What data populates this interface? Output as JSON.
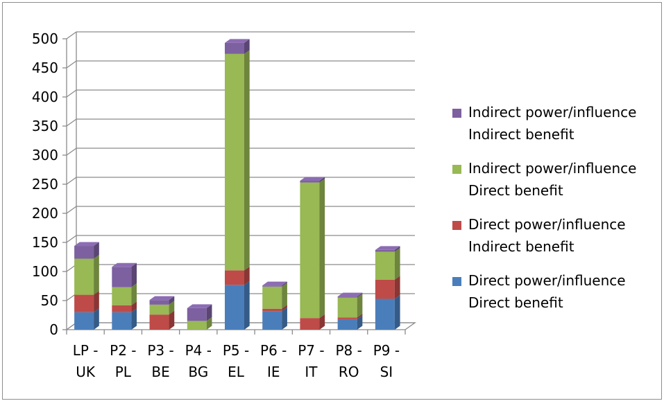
{
  "chart_data": {
    "type": "bar",
    "stacked": true,
    "three_d": true,
    "categories": [
      [
        "LP -",
        "UK"
      ],
      [
        "P2 -",
        "PL"
      ],
      [
        "P3 -",
        "BE"
      ],
      [
        "P4 -",
        "BG"
      ],
      [
        "P5 -",
        "EL"
      ],
      [
        "P6 -",
        "IE"
      ],
      [
        "P7 -",
        "IT"
      ],
      [
        "P8 -",
        "RO"
      ],
      [
        "P9 -",
        "SI"
      ]
    ],
    "series": [
      {
        "name": [
          "Direct power/influence",
          "Direct benefit"
        ],
        "color": "#4a7ebb",
        "values": [
          30,
          30,
          0,
          0,
          77,
          32,
          0,
          18,
          53
        ]
      },
      {
        "name": [
          "Direct power/influence",
          "Indirect benefit"
        ],
        "color": "#be4b48",
        "values": [
          30,
          12,
          26,
          0,
          25,
          4,
          20,
          3,
          33
        ]
      },
      {
        "name": [
          "Indirect power/influence",
          "Direct benefit"
        ],
        "color": "#98b954",
        "values": [
          62,
          31,
          17,
          15,
          372,
          38,
          233,
          34,
          48
        ]
      },
      {
        "name": [
          "Indirect power/influence",
          "Indirect benefit"
        ],
        "color": "#7d60a0",
        "values": [
          22,
          35,
          8,
          22,
          19,
          2,
          3,
          2,
          3
        ]
      }
    ],
    "ylim": [
      0,
      500
    ],
    "yticks": [
      0,
      50,
      100,
      150,
      200,
      250,
      300,
      350,
      400,
      450,
      500
    ],
    "grid": true,
    "legend_position": "right"
  }
}
